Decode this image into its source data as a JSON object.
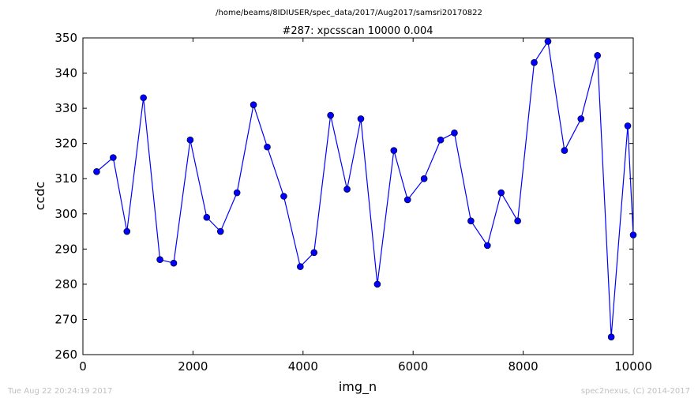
{
  "header": {
    "file_path": "/home/beams/8IDIUSER/spec_data/2017/Aug2017/samsri20170822"
  },
  "footer": {
    "timestamp": "Tue Aug 22 20:24:19 2017",
    "credit": "spec2nexus, (C) 2014-2017"
  },
  "colors": {
    "series": "#0000ff",
    "axis": "#000000",
    "footer_text": "#c0c0c0"
  },
  "chart_data": {
    "type": "line",
    "title": "#287: xpcsscan 10000 0.004",
    "xlabel": "img_n",
    "ylabel": "ccdc",
    "xlim": [
      0,
      10000
    ],
    "ylim": [
      260,
      350
    ],
    "xticks": [
      0,
      2000,
      4000,
      6000,
      8000,
      10000
    ],
    "yticks": [
      260,
      270,
      280,
      290,
      300,
      310,
      320,
      330,
      340,
      350
    ],
    "xtick_labels": [
      "0",
      "2000",
      "4000",
      "6000",
      "8000",
      "10000"
    ],
    "ytick_labels": [
      "260",
      "270",
      "280",
      "290",
      "300",
      "310",
      "320",
      "330",
      "340",
      "350"
    ],
    "grid": false,
    "markers": "circle",
    "series": [
      {
        "x": [
          250,
          550,
          800,
          1100,
          1400,
          1650,
          1950,
          2250,
          2500,
          2800,
          3100,
          3350,
          3650,
          3950,
          4200,
          4500,
          4800,
          5050,
          5350,
          5650,
          5900,
          6200,
          6500,
          6750,
          7050,
          7350,
          7600,
          7900,
          8200,
          8450,
          8750,
          9050,
          9350,
          9600,
          9900,
          10000
        ],
        "y": [
          312,
          316,
          295,
          333,
          287,
          286,
          321,
          299,
          295,
          306,
          331,
          319,
          305,
          285,
          289,
          328,
          307,
          327,
          280,
          318,
          304,
          310,
          321,
          323,
          298,
          291,
          306,
          298,
          343,
          349,
          318,
          327,
          345,
          265,
          325,
          294
        ]
      }
    ]
  }
}
